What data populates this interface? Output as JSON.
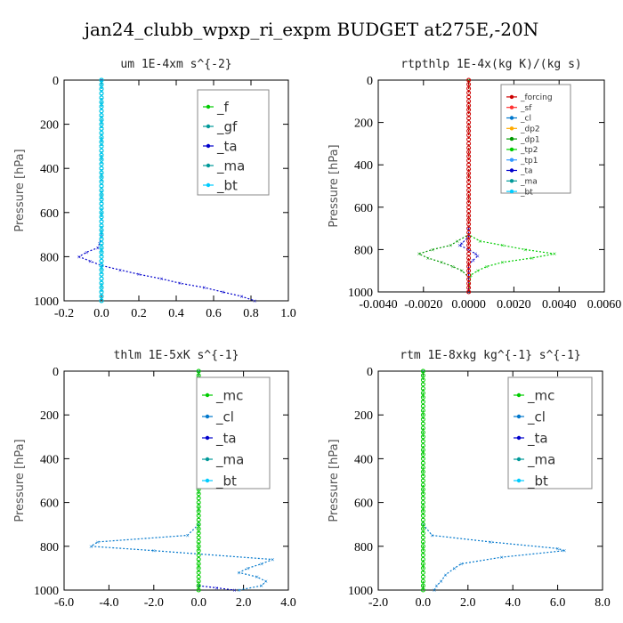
{
  "title": "jan24_clubb_wpxp_ri_expm  BUDGET at275E,-20N",
  "colors": {
    "f": "#00cc00",
    "gf": "#009999",
    "ta": "#0000cc",
    "ma": "#009999",
    "bt": "#00ccff",
    "forcing": "#cc0000",
    "sf": "#ff3333",
    "cl": "#0077cc",
    "dp2": "#ffaa00",
    "dp1": "#009900",
    "tp2": "#00cc00",
    "tp1": "#3399ff",
    "mc": "#00cc00",
    "frame": "#000000",
    "legend_frame": "#888888"
  },
  "chart_data": [
    {
      "type": "line",
      "title": "um   1E-4xm s^{-2}",
      "ylabel": "Pressure [hPa]",
      "xlim": [
        -0.2,
        1.0
      ],
      "ylim": [
        1000,
        0
      ],
      "xticks": [
        "-0.2",
        "0.0",
        "0.2",
        "0.4",
        "0.6",
        "0.8",
        "1.0"
      ],
      "xtick_values": [
        -0.2,
        0.0,
        0.2,
        0.4,
        0.6,
        0.8,
        1.0
      ],
      "yticks": [
        "0",
        "200",
        "400",
        "600",
        "800",
        "1000"
      ],
      "ytick_values": [
        0,
        200,
        400,
        600,
        800,
        1000
      ],
      "legend": [
        "_f",
        "_gf",
        "_ta",
        "_ma",
        "_bt"
      ],
      "legend_position": "top-right",
      "series": [
        {
          "name": "_ta",
          "points": [
            [
              0.0,
              0
            ],
            [
              0.0,
              700
            ],
            [
              -0.01,
              740
            ],
            [
              -0.02,
              760
            ],
            [
              -0.08,
              780
            ],
            [
              -0.12,
              800
            ],
            [
              -0.06,
              820
            ],
            [
              0.0,
              840
            ],
            [
              0.1,
              860
            ],
            [
              0.2,
              880
            ],
            [
              0.32,
              900
            ],
            [
              0.42,
              920
            ],
            [
              0.55,
              940
            ],
            [
              0.65,
              960
            ],
            [
              0.75,
              980
            ],
            [
              0.82,
              1000
            ]
          ]
        },
        {
          "name": "_f",
          "points": [
            [
              0.0,
              0
            ],
            [
              0.0,
              1000
            ]
          ]
        },
        {
          "name": "_gf",
          "points": [
            [
              0.0,
              0
            ],
            [
              0.0,
              1000
            ]
          ]
        },
        {
          "name": "_bt",
          "points": [
            [
              0.0,
              0
            ],
            [
              0.0,
              1000
            ]
          ]
        }
      ]
    },
    {
      "type": "line",
      "title": "rtpthlp   1E-4x(kg K)/(kg s)",
      "ylabel": "Pressure [hPa]",
      "xlim": [
        -0.004,
        0.006
      ],
      "ylim": [
        1000,
        0
      ],
      "xticks": [
        "-0.0040",
        "-0.0020",
        "0.0000",
        "0.0020",
        "0.0040",
        "0.0060"
      ],
      "xtick_values": [
        -0.004,
        -0.002,
        0.0,
        0.002,
        0.004,
        0.006
      ],
      "yticks": [
        "0",
        "200",
        "400",
        "600",
        "800",
        "1000"
      ],
      "ytick_values": [
        0,
        200,
        400,
        600,
        800,
        1000
      ],
      "legend": [
        "_forcing",
        "_sf",
        "_cl",
        "_dp2",
        "_dp1",
        "_tp2",
        "_tp1",
        "_ta",
        "_ma",
        "_bt"
      ],
      "legend_position": "top-right",
      "series": [
        {
          "name": "_tp2",
          "points": [
            [
              0.0,
              0
            ],
            [
              0.0,
              730
            ],
            [
              0.0005,
              760
            ],
            [
              0.0015,
              780
            ],
            [
              0.0025,
              800
            ],
            [
              0.0038,
              820
            ],
            [
              0.0028,
              840
            ],
            [
              0.0015,
              860
            ],
            [
              0.0008,
              880
            ],
            [
              0.0004,
              900
            ],
            [
              0.0001,
              920
            ],
            [
              0.0,
              1000
            ]
          ]
        },
        {
          "name": "_dp1",
          "points": [
            [
              0.0,
              0
            ],
            [
              0.0,
              730
            ],
            [
              -0.0005,
              760
            ],
            [
              -0.0008,
              780
            ],
            [
              -0.0016,
              800
            ],
            [
              -0.0022,
              820
            ],
            [
              -0.0018,
              840
            ],
            [
              -0.0012,
              860
            ],
            [
              -0.0007,
              880
            ],
            [
              -0.0003,
              900
            ],
            [
              0.0,
              930
            ],
            [
              0.0,
              1000
            ]
          ]
        },
        {
          "name": "_ta",
          "points": [
            [
              0.0,
              700
            ],
            [
              0.0,
              740
            ],
            [
              -0.0003,
              770
            ],
            [
              -0.0004,
              780
            ],
            [
              0.0,
              800
            ],
            [
              0.0003,
              820
            ],
            [
              0.0004,
              830
            ],
            [
              0.0002,
              850
            ],
            [
              0.0,
              870
            ],
            [
              0.0,
              1000
            ]
          ]
        },
        {
          "name": "_forcing",
          "points": [
            [
              0.0,
              0
            ],
            [
              0.0,
              1000
            ]
          ]
        }
      ]
    },
    {
      "type": "line",
      "title": "thlm   1E-5xK s^{-1}",
      "ylabel": "Pressure [hPa]",
      "xlim": [
        -6.0,
        4.0
      ],
      "ylim": [
        1000,
        0
      ],
      "xticks": [
        "-6.0",
        "-4.0",
        "-2.0",
        "0.0",
        "2.0",
        "4.0"
      ],
      "xtick_values": [
        -6.0,
        -4.0,
        -2.0,
        0.0,
        2.0,
        4.0
      ],
      "yticks": [
        "0",
        "200",
        "400",
        "600",
        "800",
        "1000"
      ],
      "ytick_values": [
        0,
        200,
        400,
        600,
        800,
        1000
      ],
      "legend": [
        "_mc",
        "_cl",
        "_ta",
        "_ma",
        "_bt"
      ],
      "legend_position": "top-right",
      "series": [
        {
          "name": "_cl",
          "points": [
            [
              0.0,
              0
            ],
            [
              0.0,
              700
            ],
            [
              -0.5,
              750
            ],
            [
              -4.5,
              780
            ],
            [
              -4.8,
              800
            ],
            [
              -2.0,
              820
            ],
            [
              3.3,
              860
            ],
            [
              2.8,
              880
            ],
            [
              2.2,
              900
            ],
            [
              1.8,
              920
            ],
            [
              2.6,
              940
            ],
            [
              3.0,
              960
            ],
            [
              2.8,
              980
            ],
            [
              1.8,
              1000
            ]
          ]
        },
        {
          "name": "_ta",
          "points": [
            [
              0.0,
              980
            ],
            [
              0.8,
              990
            ],
            [
              1.6,
              1000
            ]
          ]
        },
        {
          "name": "_mc",
          "points": [
            [
              0.0,
              0
            ],
            [
              0.0,
              1000
            ]
          ]
        }
      ]
    },
    {
      "type": "line",
      "title": "rtm   1E-8xkg kg^{-1} s^{-1}",
      "ylabel": "Pressure [hPa]",
      "xlim": [
        -2.0,
        8.0
      ],
      "ylim": [
        1000,
        0
      ],
      "xticks": [
        "-2.0",
        "0.0",
        "2.0",
        "4.0",
        "6.0",
        "8.0"
      ],
      "xtick_values": [
        -2.0,
        0.0,
        2.0,
        4.0,
        6.0,
        8.0
      ],
      "yticks": [
        "0",
        "200",
        "400",
        "600",
        "800",
        "1000"
      ],
      "ytick_values": [
        0,
        200,
        400,
        600,
        800,
        1000
      ],
      "legend": [
        "_mc",
        "_cl",
        "_ta",
        "_ma",
        "_bt"
      ],
      "legend_position": "top-right",
      "series": [
        {
          "name": "_cl",
          "points": [
            [
              0.0,
              0
            ],
            [
              0.0,
              700
            ],
            [
              0.4,
              750
            ],
            [
              3.0,
              780
            ],
            [
              6.0,
              810
            ],
            [
              6.3,
              820
            ],
            [
              3.5,
              850
            ],
            [
              1.7,
              880
            ],
            [
              1.4,
              900
            ],
            [
              1.0,
              930
            ],
            [
              0.8,
              960
            ],
            [
              0.6,
              980
            ],
            [
              0.5,
              1000
            ]
          ]
        },
        {
          "name": "_mc",
          "points": [
            [
              0.0,
              0
            ],
            [
              0.0,
              1000
            ]
          ]
        }
      ]
    }
  ]
}
